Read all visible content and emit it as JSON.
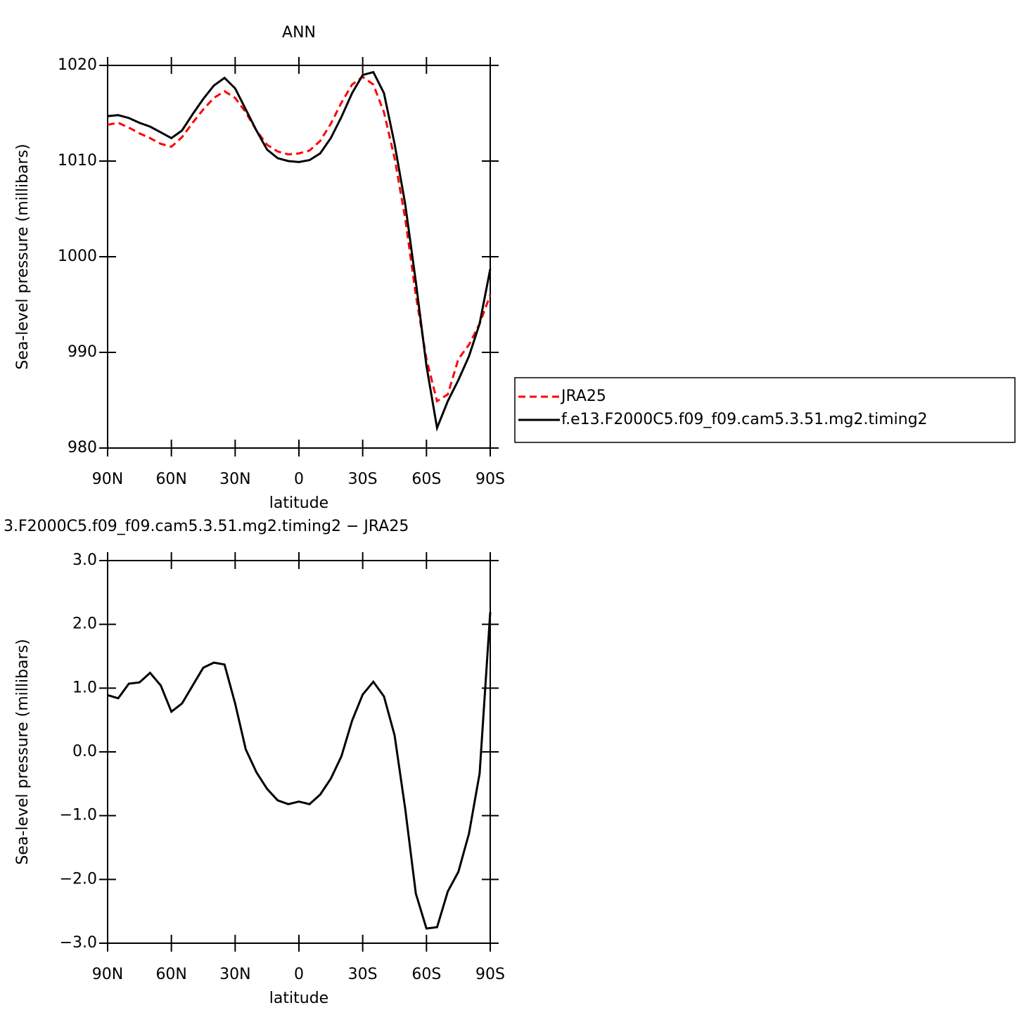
{
  "chart_data": [
    {
      "type": "line",
      "title": "ANN",
      "xlabel": "latitude",
      "ylabel": "Sea-level pressure (millibars)",
      "x": [
        90,
        85,
        80,
        75,
        70,
        65,
        60,
        55,
        50,
        45,
        40,
        35,
        30,
        25,
        20,
        15,
        10,
        5,
        0,
        -5,
        -10,
        -15,
        -20,
        -25,
        -30,
        -35,
        -40,
        -45,
        -50,
        -55,
        -60,
        -65,
        -70,
        -75,
        -80,
        -85,
        -90
      ],
      "xlim": [
        90,
        -90
      ],
      "xticks": [
        {
          "value": 90,
          "label": "90N"
        },
        {
          "value": 60,
          "label": "60N"
        },
        {
          "value": 30,
          "label": "30N"
        },
        0,
        {
          "value": -30,
          "label": "30S"
        },
        {
          "value": -60,
          "label": "60S"
        },
        {
          "value": -90,
          "label": "90S"
        }
      ],
      "ylim": [
        980,
        1020
      ],
      "yticks": [
        980,
        990,
        1000,
        1010,
        1020
      ],
      "legend": "right",
      "series": [
        {
          "name": "JRA25",
          "color": "#ff0000",
          "dash": true,
          "values": [
            1013.8,
            1014.0,
            1013.5,
            1012.9,
            1012.4,
            1011.8,
            1011.5,
            1012.5,
            1014.0,
            1015.4,
            1016.6,
            1017.3,
            1016.6,
            1015.1,
            1013.2,
            1011.7,
            1011.0,
            1010.7,
            1010.8,
            1011.1,
            1012.1,
            1013.9,
            1016.1,
            1018.0,
            1018.8,
            1018.0,
            1015.1,
            1010.3,
            1004.0,
            996.0,
            989.3,
            984.9,
            985.6,
            989.3,
            990.8,
            993.0,
            996.0
          ]
        },
        {
          "name": "f.e13.F2000C5.f09_f09.cam5.3.51.mg2.timing2",
          "color": "#000000",
          "dash": false,
          "values": [
            1014.7,
            1014.8,
            1014.5,
            1014.0,
            1013.6,
            1013.0,
            1012.4,
            1013.2,
            1014.9,
            1016.5,
            1017.9,
            1018.7,
            1017.6,
            1015.4,
            1013.2,
            1011.2,
            1010.3,
            1010.0,
            1009.9,
            1010.1,
            1010.8,
            1012.4,
            1014.6,
            1017.1,
            1019.0,
            1019.3,
            1017.1,
            1011.8,
            1005.5,
            997.4,
            988.6,
            982.1,
            984.9,
            987.1,
            989.6,
            993.0,
            998.7
          ]
        }
      ]
    },
    {
      "type": "line",
      "title": "3.F2000C5.f09_f09.cam5.3.51.mg2.timing2 − JRA25",
      "xlabel": "latitude",
      "ylabel": "Sea-level pressure (millibars)",
      "x": [
        90,
        85,
        80,
        75,
        70,
        65,
        60,
        55,
        50,
        45,
        40,
        35,
        30,
        25,
        20,
        15,
        10,
        5,
        0,
        -5,
        -10,
        -15,
        -20,
        -25,
        -30,
        -35,
        -40,
        -45,
        -50,
        -55,
        -60,
        -65,
        -70,
        -75,
        -80,
        -85,
        -90
      ],
      "xlim": [
        90,
        -90
      ],
      "xticks": [
        {
          "value": 90,
          "label": "90N"
        },
        {
          "value": 60,
          "label": "60N"
        },
        {
          "value": 30,
          "label": "30N"
        },
        0,
        {
          "value": -30,
          "label": "30S"
        },
        {
          "value": -60,
          "label": "60S"
        },
        {
          "value": -90,
          "label": "90S"
        }
      ],
      "ylim": [
        -3,
        3
      ],
      "yticks": [
        {
          "value": -3,
          "label": "−3.0"
        },
        {
          "value": -2,
          "label": "−2.0"
        },
        {
          "value": -1,
          "label": "−1.0"
        },
        {
          "value": 0,
          "label": "0.0"
        },
        {
          "value": 1,
          "label": "1.0"
        },
        {
          "value": 2,
          "label": "2.0"
        },
        {
          "value": 3,
          "label": "3.0"
        }
      ],
      "series": [
        {
          "color": "#000000",
          "dash": false,
          "values": [
            0.89,
            0.84,
            1.07,
            1.09,
            1.24,
            1.04,
            0.63,
            0.76,
            1.04,
            1.32,
            1.4,
            1.37,
            0.76,
            0.04,
            -0.32,
            -0.58,
            -0.76,
            -0.82,
            -0.78,
            -0.82,
            -0.67,
            -0.42,
            -0.07,
            0.49,
            0.9,
            1.1,
            0.87,
            0.26,
            -0.89,
            -2.22,
            -2.77,
            -2.75,
            -2.19,
            -1.88,
            -1.28,
            -0.34,
            2.19
          ]
        }
      ]
    }
  ]
}
